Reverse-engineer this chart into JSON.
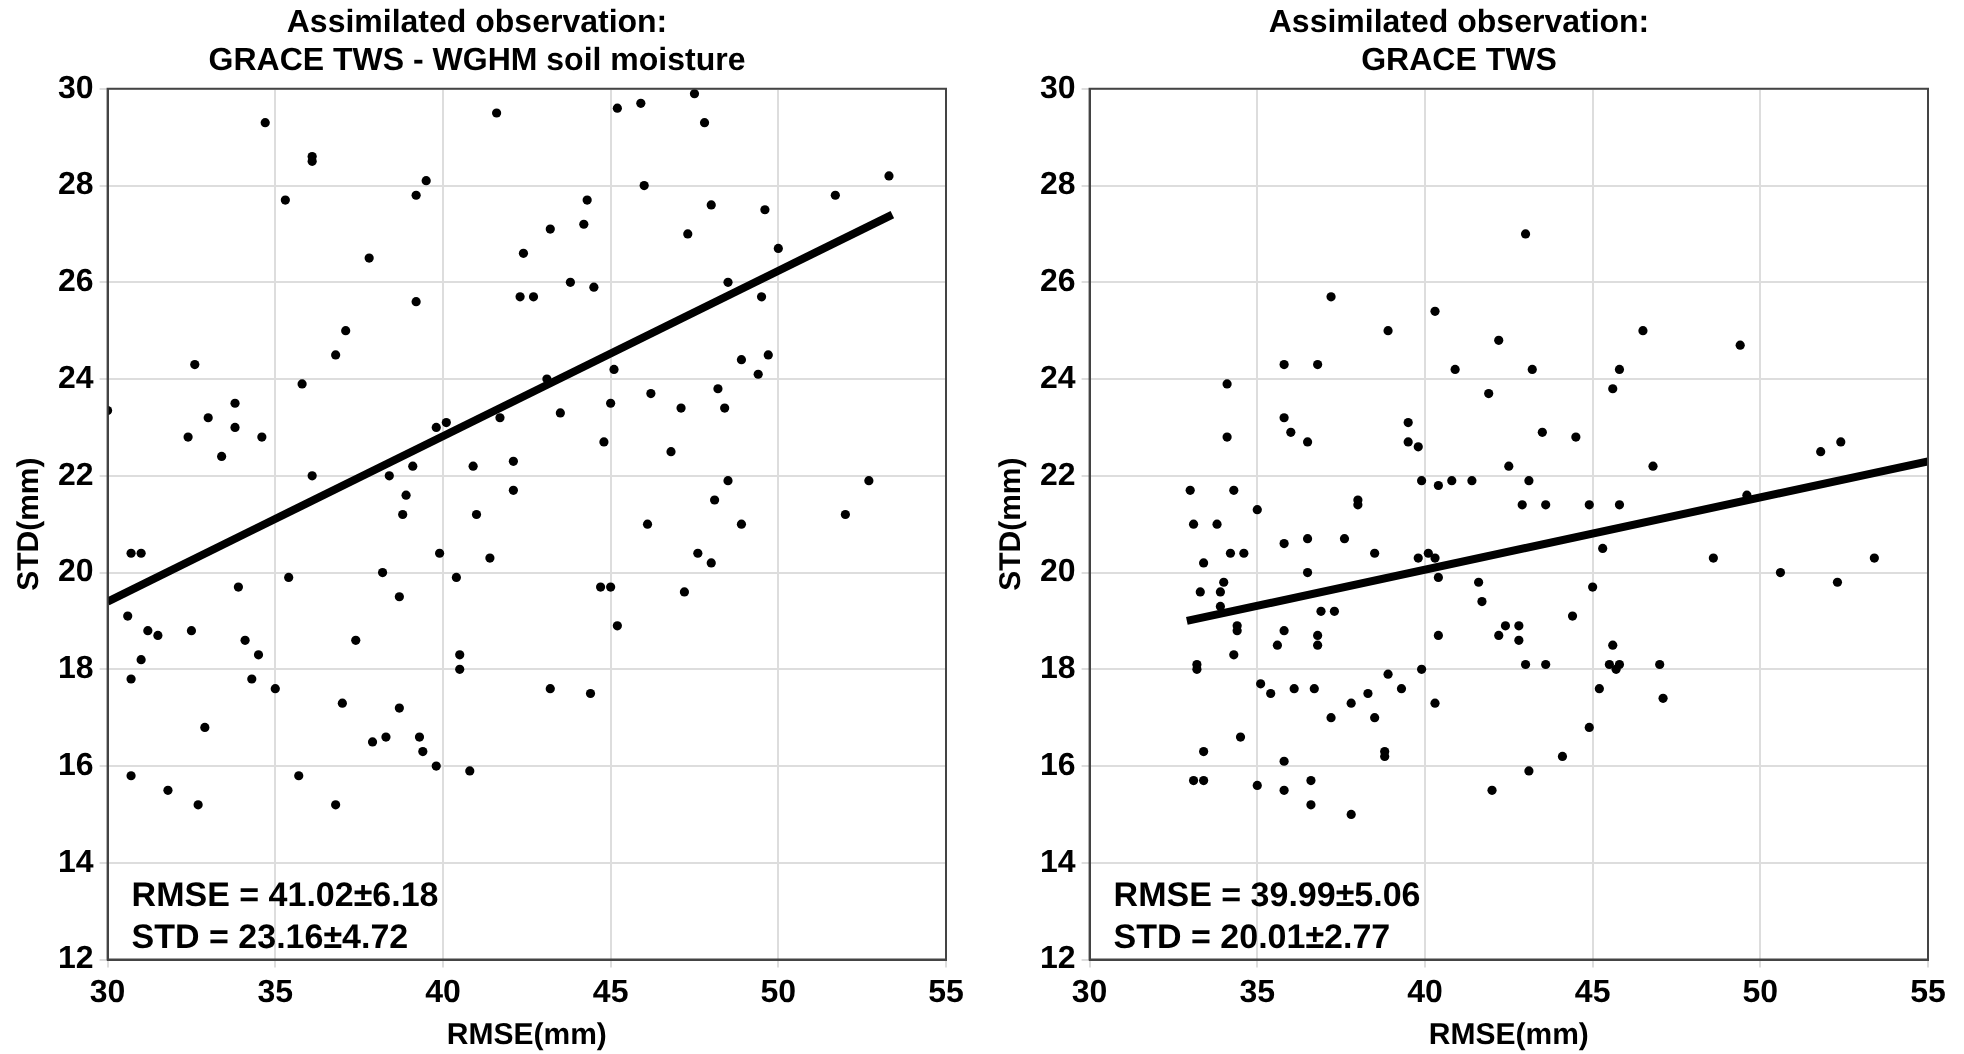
{
  "chart_data": [
    {
      "type": "scatter",
      "title": "Assimilated observation:\nGRACE TWS - WGHM soil moisture",
      "xlabel": "RMSE(mm)",
      "ylabel": "STD(mm)",
      "xlim": [
        30,
        55
      ],
      "xticks": [
        30,
        35,
        40,
        45,
        50,
        55
      ],
      "ylim": [
        12,
        30
      ],
      "yticks": [
        12,
        14,
        16,
        18,
        20,
        22,
        24,
        26,
        28,
        30
      ],
      "grid": true,
      "annotations": [
        "RMSE = 41.02±6.18",
        "STD = 23.16±4.72"
      ],
      "series": [
        {
          "type": "scatter",
          "marker": "circle",
          "color": "#000000",
          "x": [
            30.0,
            34.7,
            36.1,
            36.1,
            35.3,
            39.2,
            39.5,
            41.6,
            37.8,
            39.2,
            37.1,
            36.8,
            32.6,
            35.8,
            33.8,
            33.0,
            33.8,
            32.4,
            34.6,
            33.4,
            36.1,
            39.8,
            40.1,
            41.7,
            42.1,
            42.1,
            40.9,
            39.1,
            38.4,
            38.9,
            38.8,
            41.0,
            41.4,
            39.9,
            30.7,
            31.0,
            30.6,
            33.9,
            35.4,
            38.2,
            38.7,
            40.4,
            31.2,
            31.5,
            32.5,
            31.0,
            30.7,
            34.1,
            34.5,
            34.3,
            35.0,
            37.4,
            40.5,
            40.5,
            37.0,
            32.9,
            38.7,
            37.9,
            38.3,
            39.3,
            39.4,
            39.8,
            40.8,
            30.7,
            31.8,
            35.7,
            32.7,
            36.8,
            45.2,
            45.9,
            47.5,
            47.8,
            46.0,
            44.3,
            44.2,
            43.2,
            42.4,
            51.7,
            53.3,
            48.0,
            49.6,
            47.3,
            50.0,
            42.3,
            42.7,
            43.8,
            44.5,
            48.5,
            49.5,
            48.9,
            49.7,
            49.4,
            45.1,
            43.1,
            46.2,
            45.0,
            43.5,
            47.1,
            48.2,
            48.4,
            44.8,
            46.8,
            48.5,
            48.1,
            48.9,
            46.1,
            52.7,
            52.0,
            47.6,
            48.0,
            44.7,
            45.0,
            47.2,
            45.2,
            43.2,
            44.4
          ],
          "values": [
            23.35,
            29.3,
            28.6,
            28.5,
            27.7,
            27.8,
            28.1,
            29.5,
            26.5,
            25.6,
            25.0,
            24.5,
            24.3,
            23.9,
            23.5,
            23.2,
            23.0,
            22.8,
            22.8,
            22.4,
            22.0,
            23.0,
            23.1,
            23.2,
            22.3,
            21.7,
            22.2,
            22.2,
            22.0,
            21.6,
            21.2,
            21.2,
            20.3,
            20.4,
            20.4,
            20.4,
            19.1,
            19.7,
            19.9,
            20.0,
            19.5,
            19.9,
            18.8,
            18.7,
            18.8,
            18.2,
            17.8,
            18.6,
            18.3,
            17.8,
            17.6,
            18.6,
            18.3,
            18.0,
            17.3,
            16.8,
            17.2,
            16.5,
            16.6,
            16.6,
            16.3,
            16.0,
            15.9,
            15.8,
            15.5,
            15.8,
            15.2,
            15.2,
            29.6,
            29.7,
            29.9,
            29.3,
            28.0,
            27.7,
            27.2,
            27.1,
            26.6,
            27.8,
            28.2,
            27.6,
            27.5,
            27.0,
            26.7,
            25.7,
            25.7,
            26.0,
            25.9,
            26.0,
            25.7,
            24.4,
            24.5,
            24.1,
            24.2,
            24.0,
            23.7,
            23.5,
            23.3,
            23.4,
            23.8,
            23.4,
            22.7,
            22.5,
            21.9,
            21.5,
            21.0,
            21.0,
            21.9,
            21.2,
            20.4,
            20.2,
            19.7,
            19.7,
            19.6,
            18.9,
            17.6,
            17.5
          ]
        },
        {
          "type": "line",
          "marker": "none",
          "color": "#000000",
          "x": [
            30,
            53.4
          ],
          "values": [
            19.4,
            27.4
          ]
        }
      ]
    },
    {
      "type": "scatter",
      "title": "Assimilated observation:\nGRACE TWS",
      "xlabel": "RMSE(mm)",
      "ylabel": "STD(mm)",
      "xlim": [
        30,
        55
      ],
      "xticks": [
        30,
        35,
        40,
        45,
        50,
        55
      ],
      "ylim": [
        12,
        30
      ],
      "yticks": [
        12,
        14,
        16,
        18,
        20,
        22,
        24,
        26,
        28,
        30
      ],
      "grid": true,
      "annotations": [
        "RMSE = 39.99±5.06",
        "STD = 20.01±2.77"
      ],
      "series": [
        {
          "type": "scatter",
          "marker": "circle",
          "color": "#000000",
          "x": [
            37.2,
            40.3,
            38.9,
            42.2,
            35.8,
            36.8,
            40.9,
            34.1,
            41.9,
            35.8,
            36.0,
            36.5,
            34.1,
            39.5,
            39.5,
            39.8,
            42.5,
            33.0,
            34.3,
            39.9,
            40.4,
            40.8,
            41.4,
            38.0,
            38.0,
            35.0,
            33.1,
            33.8,
            34.2,
            34.6,
            35.8,
            36.5,
            37.6,
            38.5,
            33.4,
            36.5,
            39.8,
            40.1,
            40.3,
            33.3,
            33.9,
            34.0,
            40.4,
            41.6,
            33.9,
            34.4,
            34.4,
            36.9,
            37.3,
            41.7,
            42.2,
            42.4,
            35.8,
            35.6,
            36.8,
            36.8,
            40.4,
            34.3,
            33.2,
            33.2,
            38.9,
            39.9,
            35.1,
            35.4,
            36.1,
            36.7,
            39.3,
            37.8,
            38.3,
            40.3,
            37.2,
            38.5,
            34.5,
            33.4,
            38.8,
            38.8,
            33.1,
            33.4,
            35.0,
            35.8,
            35.8,
            36.6,
            36.6,
            37.8,
            42.0,
            43.0,
            46.5,
            49.4,
            43.2,
            45.6,
            45.8,
            43.5,
            44.5,
            46.8,
            43.1,
            42.9,
            43.6,
            44.9,
            45.8,
            49.6,
            51.8,
            52.4,
            45.3,
            48.6,
            50.6,
            52.3,
            53.4,
            45.0,
            44.4,
            42.8,
            42.8,
            43.0,
            43.6,
            45.6,
            45.5,
            45.7,
            45.8,
            47.0,
            47.1,
            45.2,
            44.9,
            44.1,
            43.1
          ],
          "values": [
            25.7,
            25.4,
            25.0,
            24.8,
            24.3,
            24.3,
            24.2,
            23.9,
            23.7,
            23.2,
            22.9,
            22.7,
            22.8,
            23.1,
            22.7,
            22.6,
            22.2,
            21.7,
            21.7,
            21.9,
            21.8,
            21.9,
            21.9,
            21.5,
            21.4,
            21.3,
            21.0,
            21.0,
            20.4,
            20.4,
            20.6,
            20.7,
            20.7,
            20.4,
            20.2,
            20.0,
            20.3,
            20.4,
            20.3,
            19.6,
            19.6,
            19.8,
            19.9,
            19.8,
            19.3,
            18.9,
            18.8,
            19.2,
            19.2,
            19.4,
            18.7,
            18.9,
            18.8,
            18.5,
            18.7,
            18.5,
            18.7,
            18.3,
            18.1,
            18.0,
            17.9,
            18.0,
            17.7,
            17.5,
            17.6,
            17.6,
            17.6,
            17.3,
            17.5,
            17.3,
            17.0,
            17.0,
            16.6,
            16.3,
            16.3,
            16.2,
            15.7,
            15.7,
            15.6,
            16.1,
            15.5,
            15.7,
            15.2,
            15.0,
            15.5,
            27.0,
            25.0,
            24.7,
            24.2,
            23.8,
            24.2,
            22.9,
            22.8,
            22.2,
            21.9,
            21.4,
            21.4,
            21.4,
            21.4,
            21.6,
            22.5,
            22.7,
            20.5,
            20.3,
            20.0,
            19.8,
            20.3,
            19.7,
            19.1,
            18.9,
            18.6,
            18.1,
            18.1,
            18.5,
            18.1,
            18.0,
            18.1,
            18.1,
            17.4,
            17.6,
            16.8,
            16.2,
            15.9
          ]
        },
        {
          "type": "line",
          "marker": "none",
          "color": "#000000",
          "x": [
            32.9,
            55
          ],
          "values": [
            19.0,
            22.3
          ]
        }
      ]
    }
  ]
}
